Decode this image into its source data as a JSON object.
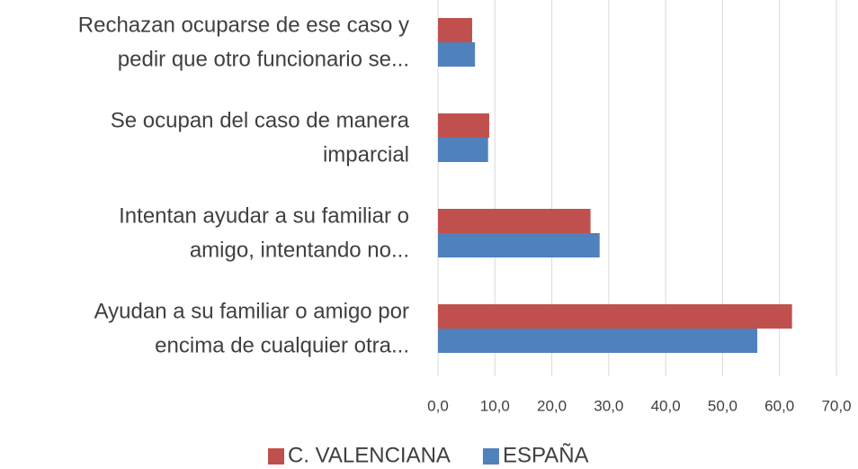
{
  "chart_data": {
    "type": "hbar",
    "categories": [
      [
        "Rechazan ocuparse de ese caso y",
        "pedir que otro funcionario se..."
      ],
      [
        "Se ocupan del caso de manera",
        "imparcial"
      ],
      [
        "Intentan ayudar a su familiar o",
        "amigo, intentando no..."
      ],
      [
        "Ayudan a su familiar o amigo por",
        "encima de cualquier otra..."
      ]
    ],
    "series": [
      {
        "name": "C. VALENCIANA",
        "color": "#c0504d",
        "values": [
          6.0,
          9.0,
          26.8,
          62.2
        ]
      },
      {
        "name": "ESPAÑA",
        "color": "#4f81bd",
        "values": [
          6.5,
          8.8,
          28.4,
          56.1
        ]
      }
    ],
    "xlim": [
      0,
      70
    ],
    "xticks": [
      {
        "value": 0,
        "label": "0,0"
      },
      {
        "value": 10,
        "label": "10,0"
      },
      {
        "value": 20,
        "label": "20,0"
      },
      {
        "value": 30,
        "label": "30,0"
      },
      {
        "value": 40,
        "label": "40,0"
      },
      {
        "value": 50,
        "label": "50,0"
      },
      {
        "value": 60,
        "label": "60,0"
      },
      {
        "value": 70,
        "label": "70,0"
      }
    ],
    "grid": true,
    "legend": "bottom"
  }
}
